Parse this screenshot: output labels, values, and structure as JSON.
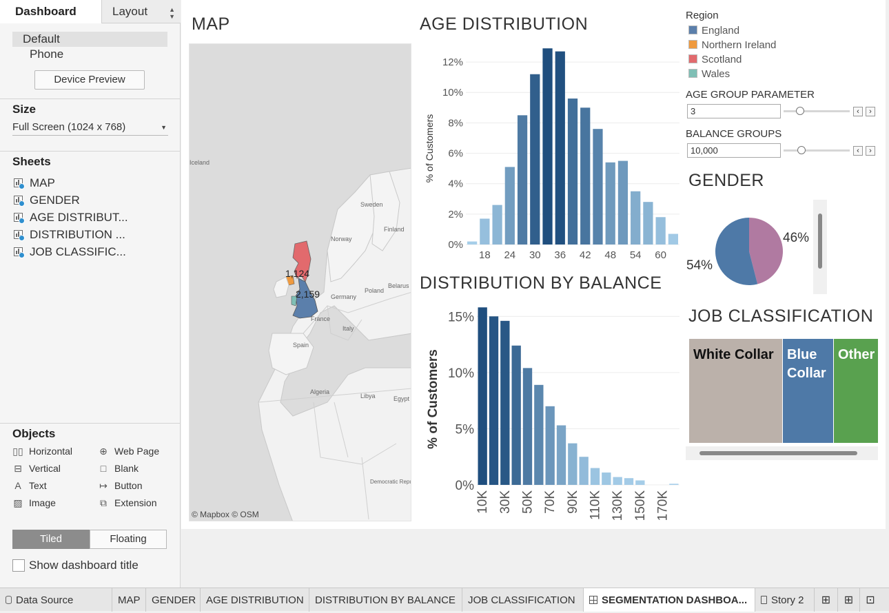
{
  "left_panel": {
    "tabs": {
      "dashboard": "Dashboard",
      "layout": "Layout"
    },
    "device": {
      "default": "Default",
      "phone": "Phone",
      "preview_button": "Device Preview"
    },
    "size": {
      "title": "Size",
      "value": "Full Screen (1024 x 768)"
    },
    "sheets": {
      "title": "Sheets",
      "items": [
        "MAP",
        "GENDER",
        "AGE DISTRIBUT...",
        "DISTRIBUTION ...",
        "JOB CLASSIFIC..."
      ]
    },
    "objects": {
      "title": "Objects",
      "items": [
        "Horizontal",
        "Web Page",
        "Vertical",
        "Blank",
        "Text",
        "Button",
        "Image",
        "Extension"
      ]
    },
    "layout_toggle": {
      "tiled": "Tiled",
      "floating": "Floating"
    },
    "show_title": "Show dashboard title"
  },
  "dashboard": {
    "map": {
      "title": "MAP",
      "credit": "© Mapbox © OSM",
      "labels": {
        "scotland_count": "1,124",
        "england_count": "2,159",
        "countries": [
          "Sweden",
          "Finland",
          "Norway",
          "Belarus",
          "Poland",
          "Germany",
          "France",
          "Italy",
          "Spain",
          "Algeria",
          "Libya",
          "Egypt",
          "Democratic Republic of Congo",
          "Iceland"
        ]
      }
    },
    "region_legend": {
      "title": "Region",
      "items": [
        {
          "name": "England",
          "color": "#5b7fab"
        },
        {
          "name": "Northern Ireland",
          "color": "#ef9a3f"
        },
        {
          "name": "Scotland",
          "color": "#e26a6d"
        },
        {
          "name": "Wales",
          "color": "#7fbfb5"
        }
      ]
    },
    "params": {
      "age_group": {
        "title": "AGE GROUP PARAMETER",
        "value": "3",
        "slider": 0.25
      },
      "balance_groups": {
        "title": "BALANCE GROUPS",
        "value": "10,000",
        "slider": 0.27
      }
    },
    "gender": {
      "title": "GENDER"
    },
    "job": {
      "title": "JOB CLASSIFICATION",
      "cells": [
        {
          "label": "White Collar",
          "color": "#bbb1aa"
        },
        {
          "label": "Blue Collar",
          "color": "#4e79a7"
        },
        {
          "label": "Other",
          "color": "#59a14f"
        }
      ]
    }
  },
  "chart_data": [
    {
      "type": "bar",
      "title": "AGE DISTRIBUTION",
      "ylabel": "% of Customers",
      "xticks": [
        "18",
        "24",
        "30",
        "36",
        "42",
        "48",
        "54",
        "60"
      ],
      "yticks": [
        "0%",
        "2%",
        "4%",
        "6%",
        "8%",
        "10%",
        "12%"
      ],
      "ylim": [
        0,
        13
      ],
      "bins_start": 15,
      "bin_width": 3,
      "values": [
        0.2,
        1.7,
        2.6,
        5.1,
        8.5,
        11.2,
        12.9,
        12.7,
        9.6,
        9.0,
        7.6,
        5.4,
        5.5,
        3.5,
        2.8,
        1.8,
        0.7
      ],
      "color_range": [
        "#a8d0eb",
        "#1f4e7e"
      ]
    },
    {
      "type": "bar",
      "title": "DISTRIBUTION BY BALANCE",
      "ylabel": "% of Customers",
      "xticks": [
        "10K",
        "30K",
        "50K",
        "70K",
        "90K",
        "110K",
        "130K",
        "150K",
        "170K"
      ],
      "yticks": [
        "0%",
        "5%",
        "10%",
        "15%"
      ],
      "ylim": [
        0,
        16
      ],
      "values": [
        15.8,
        15.0,
        14.6,
        12.4,
        10.4,
        8.9,
        7.0,
        5.3,
        3.7,
        2.5,
        1.5,
        1.1,
        0.7,
        0.6,
        0.4,
        0.0,
        0.0,
        0.1
      ],
      "color_range": [
        "#a8d0eb",
        "#1f4e7e"
      ]
    },
    {
      "type": "pie",
      "title": "GENDER",
      "slices": [
        {
          "label": "54%",
          "value": 54,
          "color": "#4e79a7"
        },
        {
          "label": "46%",
          "value": 46,
          "color": "#b07aa1"
        }
      ]
    }
  ],
  "tabs": {
    "data_source": "Data Source",
    "sheets": [
      "MAP",
      "GENDER",
      "AGE DISTRIBUTION",
      "DISTRIBUTION BY BALANCE",
      "JOB CLASSIFICATION"
    ],
    "active": "SEGMENTATION DASHBOA...",
    "story": "Story 2"
  }
}
